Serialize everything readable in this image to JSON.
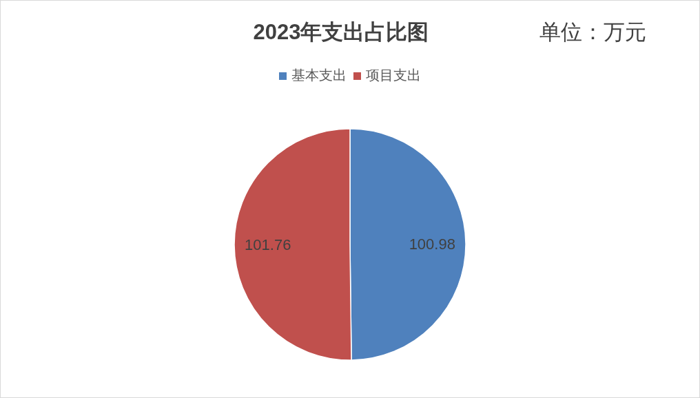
{
  "chart_data": {
    "type": "pie",
    "title": "2023年支出占比图",
    "subtitle": "单位：万元",
    "categories": [
      "基本支出",
      "项目支出"
    ],
    "values": [
      100.98,
      101.76
    ],
    "colors": [
      "#4f81bd",
      "#c0504d"
    ],
    "legend": "top",
    "data_labels": true
  }
}
